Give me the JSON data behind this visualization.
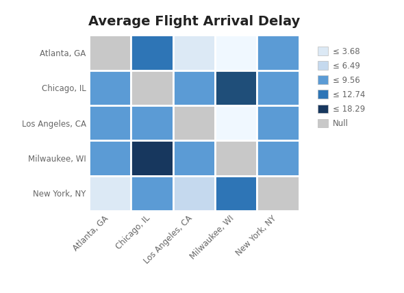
{
  "title": "Average Flight Arrival Delay",
  "cities": [
    "Atlanta, GA",
    "Chicago, IL",
    "Los Angeles, CA",
    "Milwaukee, WI",
    "New York, NY"
  ],
  "matrix_colors": [
    [
      "null",
      "med",
      "vlight",
      "white",
      "sky"
    ],
    [
      "sky",
      "null",
      "sky",
      "dark",
      "sky"
    ],
    [
      "sky",
      "sky",
      "null",
      "white",
      "sky"
    ],
    [
      "sky",
      "darkest",
      "sky",
      "null",
      "sky"
    ],
    [
      "vlight",
      "sky",
      "light",
      "med",
      "null"
    ]
  ],
  "color_map": {
    "null": "#c8c8c8",
    "vlight": "#dce9f5",
    "light": "#c5d9ee",
    "sky": "#5b9bd5",
    "med": "#2e75b6",
    "dark": "#1f4e79",
    "darkest": "#17375e",
    "white": "#f0f8ff"
  },
  "legend_entries": [
    {
      "label": "≤ 3.68",
      "color": "#dce9f5"
    },
    {
      "label": "≤ 6.49",
      "color": "#c5d9ee"
    },
    {
      "label": "≤ 9.56",
      "color": "#5b9bd5"
    },
    {
      "label": "≤ 12.74",
      "color": "#2e75b6"
    },
    {
      "label": "≤ 18.29",
      "color": "#17375e"
    },
    {
      "label": "Null",
      "color": "#c8c8c8"
    }
  ],
  "background_color": "#ffffff",
  "title_fontsize": 14,
  "axis_label_fontsize": 10,
  "tick_fontsize": 8.5,
  "legend_fontsize": 8.5
}
